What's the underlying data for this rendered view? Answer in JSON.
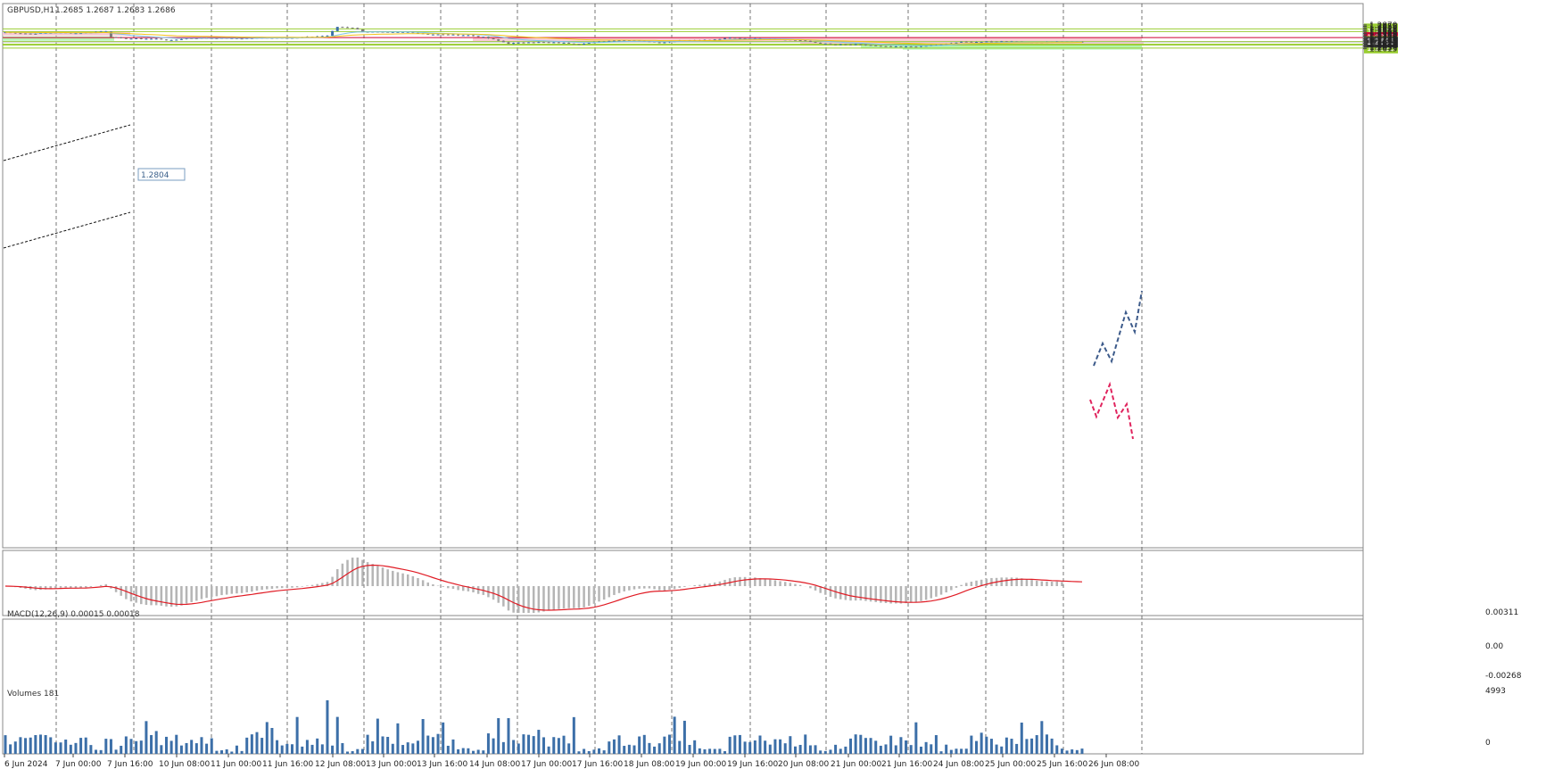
{
  "header": {
    "symbol": "GBPUSD,H1",
    "ohlc": "1.2685 1.2687 1.2683 1.2686"
  },
  "macd": {
    "label": "MACD(12,26,9) 0.00015 0.00018",
    "ticks": [
      "0.00311",
      "0.00",
      "-0.00268"
    ]
  },
  "volumes": {
    "label": "Volumes 181",
    "ticks": [
      "4993",
      "0"
    ]
  },
  "chart_data": {
    "type": "candlestick",
    "ylim": [
      1.2607,
      1.2882
    ],
    "price_ticks": [
      "1.2870",
      "1.2855",
      "1.2840",
      "1.2825",
      "1.2810",
      "1.2795",
      "1.2780",
      "1.2765",
      "1.2750",
      "1.2735",
      "1.2720",
      "1.2705",
      "1.2690",
      "1.2675",
      "1.2660",
      "1.2645",
      "1.2630",
      "1.2615"
    ],
    "time_labels": [
      "6 Jun 2024",
      "7 Jun 00:00",
      "7 Jun 16:00",
      "10 Jun 08:00",
      "11 Jun 00:00",
      "11 Jun 16:00",
      "12 Jun 08:00",
      "13 Jun 00:00",
      "13 Jun 16:00",
      "14 Jun 08:00",
      "17 Jun 00:00",
      "17 Jun 16:00",
      "18 Jun 08:00",
      "19 Jun 00:00",
      "19 Jun 16:00",
      "20 Jun 08:00",
      "21 Jun 00:00",
      "21 Jun 16:00",
      "24 Jun 08:00",
      "25 Jun 00:00",
      "25 Jun 16:00",
      "26 Jun 08:00"
    ],
    "levels": [
      {
        "label": "1.2828",
        "value": 1.2828,
        "color": "#9acd32"
      },
      {
        "label": "1.2800",
        "value": 1.28,
        "color": "#9acd32"
      },
      {
        "label": "1.2735",
        "value": 1.2735,
        "color": "#cc0033"
      },
      {
        "label": "1.2693",
        "value": 1.2693,
        "color": "#9acd32"
      },
      {
        "label": "1.2664",
        "value": 1.2664,
        "color": "#9acd32"
      },
      {
        "label": "1.2653",
        "value": 1.2653,
        "color": "#9acd32"
      },
      {
        "label": "1.2623",
        "value": 1.2623,
        "color": "#9acd32"
      }
    ],
    "current_price": {
      "label": "1.2686",
      "value": 1.2686
    },
    "hidden_price": "1.2690",
    "annotation": {
      "label": "1.2804",
      "value": 1.2804
    },
    "zones": [
      {
        "kind": "resistance",
        "from": 1.2733,
        "to": 1.274,
        "color": "#f9c9d2"
      },
      {
        "kind": "resistance",
        "from": 1.269,
        "to": 1.2698,
        "color": "#f9c9d2"
      },
      {
        "kind": "resistance",
        "from": 1.28,
        "to": 1.2804,
        "color": "#f9c9d2"
      },
      {
        "kind": "support",
        "from": 1.2738,
        "to": 1.2748,
        "color": "#b4f5b4"
      },
      {
        "kind": "support",
        "from": 1.2661,
        "to": 1.2665,
        "color": "#b4f5b4"
      },
      {
        "kind": "support",
        "from": 1.265,
        "to": 1.2654,
        "color": "#b4f5b4"
      }
    ],
    "colors": {
      "bull": "#3c6fa8",
      "bear": "#7a7a7a",
      "ma_fast": "#7ec4e8",
      "ma_slow": "#f3c319",
      "macd_signal": "#e01b24",
      "macd_hist": "#b5b5b5",
      "volume": "#3c6fa8",
      "grid": "#555555"
    }
  }
}
